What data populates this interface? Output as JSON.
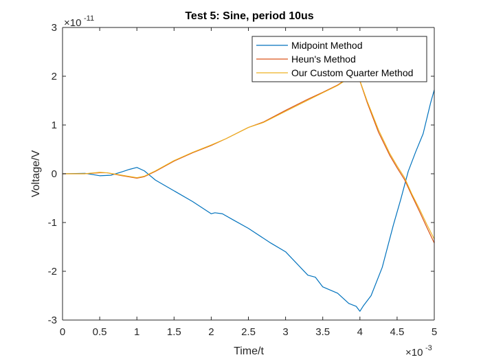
{
  "chart_data": {
    "type": "line",
    "title": "Test 5: Sine, period 10us",
    "xlabel": "Time/t",
    "ylabel": "Voltage/V",
    "x_multiplier": {
      "base": "×10",
      "exponent": "-3"
    },
    "y_multiplier": {
      "base": "×10",
      "exponent": "-11"
    },
    "xlim": [
      0,
      5
    ],
    "ylim": [
      -3,
      3
    ],
    "x_ticks": [
      0,
      0.5,
      1,
      1.5,
      2,
      2.5,
      3,
      3.5,
      4,
      4.5,
      5
    ],
    "x_tick_labels": [
      "0",
      "0.5",
      "1",
      "1.5",
      "2",
      "2.5",
      "3",
      "3.5",
      "4",
      "4.5",
      "5"
    ],
    "y_ticks": [
      -3,
      -2,
      -1,
      0,
      1,
      2,
      3
    ],
    "y_tick_labels": [
      "-3",
      "-2",
      "-1",
      "0",
      "1",
      "2",
      "3"
    ],
    "grid": false,
    "legend_position": "top-right",
    "series": [
      {
        "name": "Midpoint Method",
        "color": "#0072BD",
        "x": [
          0,
          0.3,
          0.5,
          0.65,
          0.8,
          0.9,
          1.0,
          1.1,
          1.25,
          1.5,
          1.75,
          2.0,
          2.05,
          2.15,
          2.3,
          2.5,
          2.8,
          3.0,
          3.3,
          3.4,
          3.5,
          3.7,
          3.85,
          3.95,
          4.0,
          4.05,
          4.15,
          4.3,
          4.45,
          4.55,
          4.65,
          4.75,
          4.85,
          4.95,
          5.0
        ],
        "y": [
          0,
          0.01,
          -0.04,
          -0.03,
          0.04,
          0.09,
          0.13,
          0.06,
          -0.13,
          -0.35,
          -0.57,
          -0.82,
          -0.8,
          -0.82,
          -0.95,
          -1.12,
          -1.42,
          -1.6,
          -2.08,
          -2.12,
          -2.32,
          -2.45,
          -2.66,
          -2.72,
          -2.82,
          -2.7,
          -2.5,
          -1.92,
          -1.05,
          -0.52,
          0.05,
          0.45,
          0.82,
          1.45,
          1.72
        ]
      },
      {
        "name": "Heun's Method",
        "color": "#D95319",
        "x": [
          0,
          0.3,
          0.5,
          0.6,
          0.8,
          1.0,
          1.1,
          1.25,
          1.5,
          1.75,
          2.0,
          2.2,
          2.5,
          2.7,
          3.0,
          3.3,
          3.5,
          3.7,
          3.8,
          3.9,
          3.95,
          4.0,
          4.1,
          4.25,
          4.4,
          4.5,
          4.6,
          4.7,
          4.8,
          4.9,
          5.0
        ],
        "y": [
          0,
          0,
          0.02,
          0.02,
          -0.04,
          -0.09,
          -0.06,
          0.05,
          0.26,
          0.43,
          0.58,
          0.72,
          0.95,
          1.06,
          1.3,
          1.53,
          1.67,
          1.82,
          1.92,
          2.04,
          2.05,
          1.9,
          1.45,
          0.85,
          0.38,
          0.12,
          -0.12,
          -0.45,
          -0.77,
          -1.1,
          -1.42
        ]
      },
      {
        "name": "Our Custom Quarter Method",
        "color": "#EDB120",
        "x": [
          0,
          0.3,
          0.5,
          0.6,
          0.8,
          1.0,
          1.1,
          1.25,
          1.5,
          1.75,
          2.0,
          2.2,
          2.5,
          2.7,
          3.0,
          3.3,
          3.5,
          3.7,
          3.8,
          3.9,
          3.95,
          4.0,
          4.1,
          4.25,
          4.4,
          4.5,
          4.6,
          4.7,
          4.8,
          4.9,
          5.0
        ],
        "y": [
          0,
          0,
          0.03,
          0.02,
          -0.03,
          -0.08,
          -0.05,
          0.06,
          0.27,
          0.44,
          0.59,
          0.72,
          0.95,
          1.05,
          1.28,
          1.51,
          1.66,
          1.81,
          1.91,
          2.03,
          2.04,
          1.91,
          1.48,
          0.9,
          0.42,
          0.16,
          -0.08,
          -0.42,
          -0.72,
          -1.04,
          -1.34
        ]
      }
    ]
  }
}
